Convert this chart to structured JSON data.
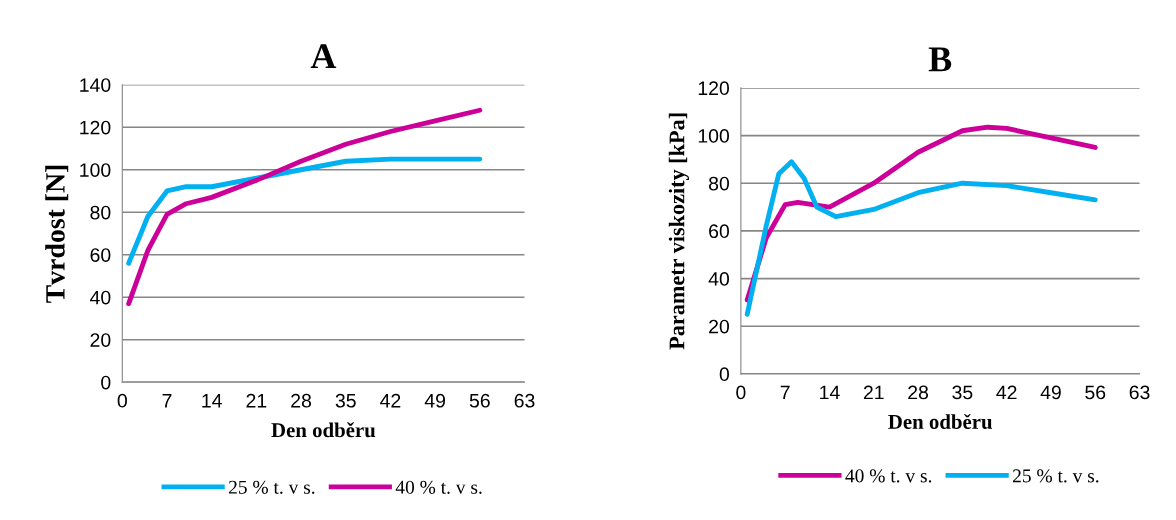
{
  "chart_data": [
    {
      "type": "line",
      "title": "A",
      "xlabel": "Den odběru",
      "ylabel": "Tvrdost [N]",
      "xlim": [
        0,
        63
      ],
      "xticks": [
        0,
        7,
        14,
        21,
        28,
        35,
        42,
        49,
        56,
        63
      ],
      "ylim": [
        0,
        140
      ],
      "yticks": [
        0,
        20,
        40,
        60,
        80,
        100,
        120,
        140
      ],
      "grid": "y",
      "legend": "bottom",
      "series": [
        {
          "name": "25 % t. v s.",
          "color": "#00b0f0",
          "x": [
            1,
            4,
            7,
            10,
            14,
            21,
            28,
            35,
            42,
            49,
            56
          ],
          "values": [
            56,
            78,
            90,
            92,
            92,
            96,
            100,
            104,
            105,
            105,
            105
          ]
        },
        {
          "name": "40 % t. v s.",
          "color": "#cc0099",
          "x": [
            1,
            4,
            7,
            10,
            14,
            21,
            28,
            35,
            42,
            49,
            56
          ],
          "values": [
            37,
            62,
            79,
            84,
            87,
            95,
            104,
            112,
            118,
            123,
            128
          ]
        }
      ]
    },
    {
      "type": "line",
      "title": "B",
      "xlabel": "Den odběru",
      "ylabel": "Parametr viskozity [kPa]",
      "xlim": [
        0,
        63
      ],
      "xticks": [
        0,
        7,
        14,
        21,
        28,
        35,
        42,
        49,
        56,
        63
      ],
      "ylim": [
        0,
        120
      ],
      "yticks": [
        0,
        20,
        40,
        60,
        80,
        100,
        120
      ],
      "grid": "y",
      "legend": "bottom",
      "series": [
        {
          "name": "40 % t. v s.",
          "color": "#cc0099",
          "x": [
            1,
            4,
            7,
            9,
            14,
            21,
            28,
            35,
            39,
            42,
            49,
            56
          ],
          "values": [
            31,
            57,
            71,
            72,
            70,
            80,
            93,
            102,
            103.5,
            103,
            99,
            95
          ]
        },
        {
          "name": "25 % t. v s.",
          "color": "#00b0f0",
          "x": [
            1,
            4,
            6,
            8,
            10,
            12,
            15,
            21,
            28,
            35,
            42,
            49,
            56
          ],
          "values": [
            25,
            62,
            84,
            89,
            82,
            70,
            66,
            69,
            76,
            80,
            79,
            76,
            73
          ]
        }
      ]
    }
  ]
}
